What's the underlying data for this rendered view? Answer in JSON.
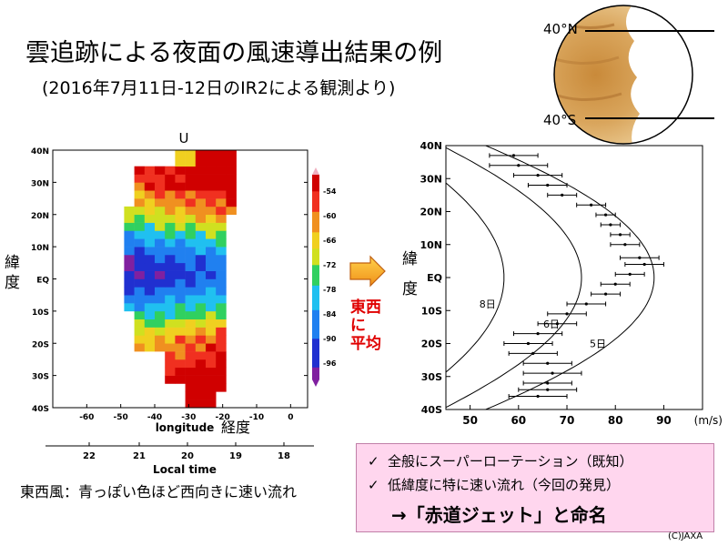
{
  "title": "雲追跡による夜面の風速導出結果の例",
  "subtitle": "(2016年7月11日-12日のIR2による観測より)",
  "venus": {
    "north_label": "40°N",
    "south_label": "40°S"
  },
  "chart_data": [
    {
      "type": "heatmap",
      "title": "U",
      "xlabel": "longitude",
      "xlabel_jp": "経度",
      "ylabel": "緯度",
      "secondary_xlabel": "Local time",
      "x_ticks": [
        "-60",
        "-50",
        "-40",
        "-30",
        "-20",
        "-10",
        "0"
      ],
      "x_range": [
        -70,
        5
      ],
      "y_ticks": [
        "40S",
        "30S",
        "20S",
        "10S",
        "EQ",
        "10N",
        "20N",
        "30N",
        "40N"
      ],
      "y_range": [
        -40,
        40
      ],
      "local_time_ticks": [
        "22",
        "21",
        "20",
        "19",
        "18"
      ],
      "colorbar_ticks": [
        "-54",
        "-60",
        "-66",
        "-72",
        "-78",
        "-84",
        "-90",
        "-96"
      ],
      "colorbar_range": [
        -100,
        -50
      ],
      "units": "m/s"
    },
    {
      "type": "scatter",
      "xlabel": "(m/s)",
      "ylabel": "緯度",
      "x_ticks": [
        "50",
        "60",
        "70",
        "80",
        "90"
      ],
      "xlim": [
        45,
        98
      ],
      "y_ticks": [
        "40S",
        "30S",
        "20S",
        "10S",
        "EQ",
        "10N",
        "20N",
        "30N",
        "40N"
      ],
      "ylim": [
        -40,
        40
      ],
      "points": [
        {
          "lat": 37,
          "u": 59,
          "err": 5
        },
        {
          "lat": 34,
          "u": 60,
          "err": 6
        },
        {
          "lat": 31,
          "u": 64,
          "err": 5
        },
        {
          "lat": 28,
          "u": 66,
          "err": 4
        },
        {
          "lat": 25,
          "u": 69,
          "err": 3
        },
        {
          "lat": 22,
          "u": 75,
          "err": 3
        },
        {
          "lat": 19,
          "u": 78,
          "err": 2
        },
        {
          "lat": 16,
          "u": 79,
          "err": 2
        },
        {
          "lat": 13,
          "u": 81,
          "err": 2
        },
        {
          "lat": 10,
          "u": 82,
          "err": 3
        },
        {
          "lat": 6,
          "u": 85,
          "err": 4
        },
        {
          "lat": 4,
          "u": 86,
          "err": 4
        },
        {
          "lat": 1,
          "u": 83,
          "err": 3
        },
        {
          "lat": -2,
          "u": 80,
          "err": 3
        },
        {
          "lat": -5,
          "u": 78,
          "err": 3
        },
        {
          "lat": -8,
          "u": 74,
          "err": 4
        },
        {
          "lat": -11,
          "u": 70,
          "err": 4
        },
        {
          "lat": -14,
          "u": 68,
          "err": 4
        },
        {
          "lat": -17,
          "u": 64,
          "err": 5
        },
        {
          "lat": -20,
          "u": 62,
          "err": 5
        },
        {
          "lat": -23,
          "u": 63,
          "err": 5
        },
        {
          "lat": -26,
          "u": 66,
          "err": 5
        },
        {
          "lat": -29,
          "u": 67,
          "err": 6
        },
        {
          "lat": -32,
          "u": 66,
          "err": 5
        },
        {
          "lat": -34,
          "u": 66,
          "err": 6
        },
        {
          "lat": -36,
          "u": 64,
          "err": 6
        }
      ],
      "reference_curves": [
        {
          "name": "8日",
          "u_eq": 57
        },
        {
          "name": "6日",
          "u_eq": 73
        },
        {
          "name": "5日",
          "u_eq": 88
        }
      ]
    }
  ],
  "labels": {
    "avg_line1": "東西に",
    "avg_line2": "平均"
  },
  "note_left": "東西風：青っぽい色ほど西向きに速い流れ",
  "results": {
    "check_mark": "✓",
    "item1": "全般にスーパーローテーション（既知）",
    "item2": "低緯度に特に速い流れ（今回の発見）",
    "conclusion": "→「赤道ジェット」と命名"
  },
  "credit": "(C)JAXA"
}
